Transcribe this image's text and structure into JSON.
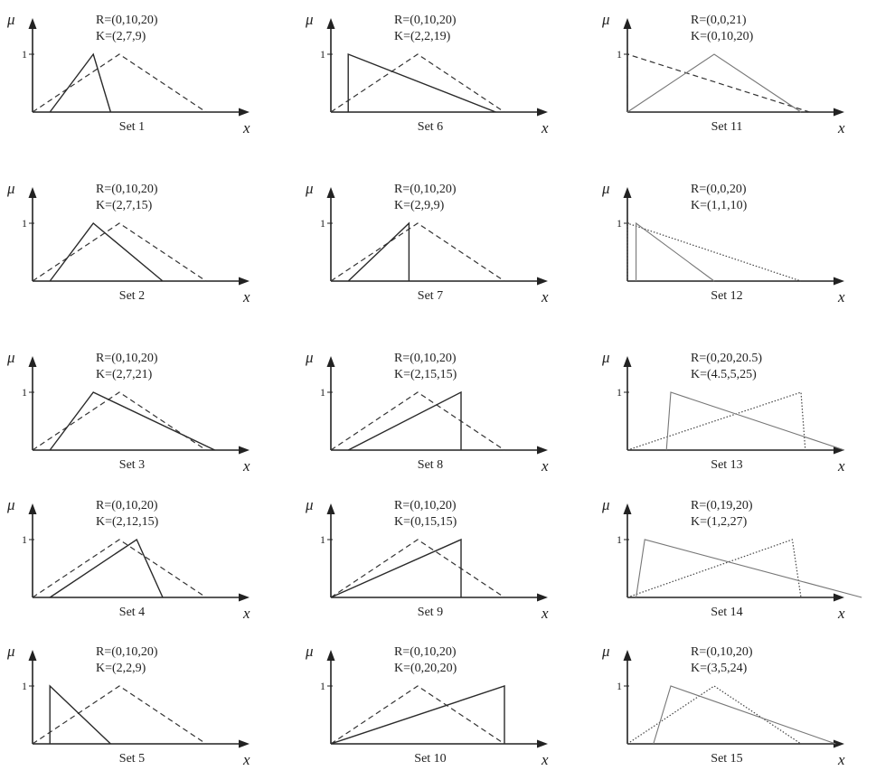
{
  "axis_labels": {
    "y": "μ",
    "x": "x",
    "one": "1"
  },
  "colors": {
    "ink": "#222222",
    "solid": "#2a2a2a",
    "dashed": "#333333",
    "dotted": "#444444",
    "thin": "#777777"
  },
  "panels": [
    {
      "caption": "Set 1",
      "r_text": "R=(0,10,20)",
      "k_text": "K=(2,7,9)",
      "r": [
        0,
        10,
        20
      ],
      "k": [
        2,
        7,
        9
      ],
      "r_style": "dashed",
      "k_style": "solid"
    },
    {
      "caption": "Set 6",
      "r_text": "R=(0,10,20)",
      "k_text": "K=(2,2,19)",
      "r": [
        0,
        10,
        20
      ],
      "k": [
        2,
        2,
        19
      ],
      "r_style": "dashed",
      "k_style": "solid"
    },
    {
      "caption": "Set 11",
      "r_text": "R=(0,0,21)",
      "k_text": "K=(0,10,20)",
      "r": [
        0,
        0,
        21
      ],
      "k": [
        0,
        10,
        20
      ],
      "r_style": "dashed",
      "k_style": "thin"
    },
    {
      "caption": "Set 2",
      "r_text": "R=(0,10,20)",
      "k_text": "K=(2,7,15)",
      "r": [
        0,
        10,
        20
      ],
      "k": [
        2,
        7,
        15
      ],
      "r_style": "dashed",
      "k_style": "solid"
    },
    {
      "caption": "Set 7",
      "r_text": "R=(0,10,20)",
      "k_text": "K=(2,9,9)",
      "r": [
        0,
        10,
        20
      ],
      "k": [
        2,
        9,
        9
      ],
      "r_style": "dashed",
      "k_style": "solid"
    },
    {
      "caption": "Set 12",
      "r_text": "R=(0,0,20)",
      "k_text": "K=(1,1,10)",
      "r": [
        0,
        0,
        20
      ],
      "k": [
        1,
        1,
        10
      ],
      "r_style": "dotted",
      "k_style": "thin"
    },
    {
      "caption": "Set 3",
      "r_text": "R=(0,10,20)",
      "k_text": "K=(2,7,21)",
      "r": [
        0,
        10,
        20
      ],
      "k": [
        2,
        7,
        21
      ],
      "r_style": "dashed",
      "k_style": "solid"
    },
    {
      "caption": "Set 8",
      "r_text": "R=(0,10,20)",
      "k_text": "K=(2,15,15)",
      "r": [
        0,
        10,
        20
      ],
      "k": [
        2,
        15,
        15
      ],
      "r_style": "dashed",
      "k_style": "solid"
    },
    {
      "caption": "Set 13",
      "r_text": "R=(0,20,20.5)",
      "k_text": "K=(4.5,5,25)",
      "r": [
        0,
        20,
        20.5
      ],
      "k": [
        4.5,
        5,
        25
      ],
      "r_style": "dotted",
      "k_style": "thin"
    },
    {
      "caption": "Set 4",
      "r_text": "R=(0,10,20)",
      "k_text": "K=(2,12,15)",
      "r": [
        0,
        10,
        20
      ],
      "k": [
        2,
        12,
        15
      ],
      "r_style": "dashed",
      "k_style": "solid"
    },
    {
      "caption": "Set 9",
      "r_text": "R=(0,10,20)",
      "k_text": "K=(0,15,15)",
      "r": [
        0,
        10,
        20
      ],
      "k": [
        0,
        15,
        15
      ],
      "r_style": "dashed",
      "k_style": "solid"
    },
    {
      "caption": "Set 14",
      "r_text": "R=(0,19,20)",
      "k_text": "K=(1,2,27)",
      "r": [
        0,
        19,
        20
      ],
      "k": [
        1,
        2,
        27
      ],
      "r_style": "dotted",
      "k_style": "thin"
    },
    {
      "caption": "Set 5",
      "r_text": "R=(0,10,20)",
      "k_text": "K=(2,2,9)",
      "r": [
        0,
        10,
        20
      ],
      "k": [
        2,
        2,
        9
      ],
      "r_style": "dashed",
      "k_style": "solid"
    },
    {
      "caption": "Set 10",
      "r_text": "R=(0,10,20)",
      "k_text": "K=(0,20,20)",
      "r": [
        0,
        10,
        20
      ],
      "k": [
        0,
        20,
        20
      ],
      "r_style": "dashed",
      "k_style": "solid"
    },
    {
      "caption": "Set 15",
      "r_text": "R=(0,10,20)",
      "k_text": "K=(3,5,24)",
      "r": [
        0,
        10,
        20
      ],
      "k": [
        3,
        5,
        24
      ],
      "r_style": "dotted",
      "k_style": "thin"
    }
  ]
}
